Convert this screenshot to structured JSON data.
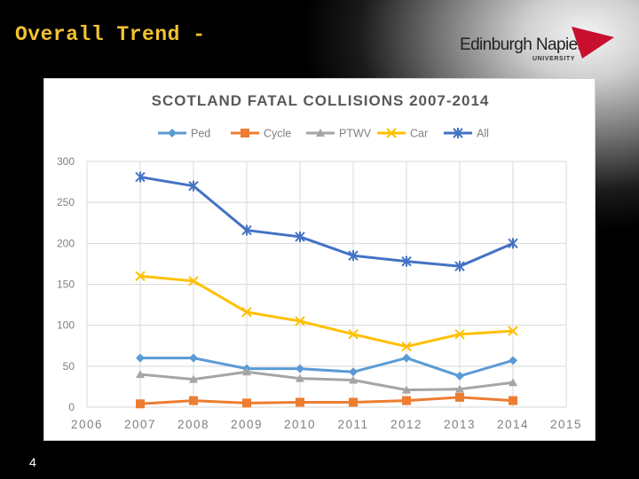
{
  "slide": {
    "title": "Overall Trend -",
    "page_number": "4"
  },
  "logo": {
    "name": "Edinburgh Napier",
    "sub": "UNIVERSITY",
    "accent_color": "#c8102e"
  },
  "chart_data": {
    "type": "line",
    "title": "SCOTLAND FATAL COLLISIONS 2007-2014",
    "xlabel": "",
    "ylabel": "",
    "x": [
      2007,
      2008,
      2009,
      2010,
      2011,
      2012,
      2013,
      2014
    ],
    "xlim": [
      2006,
      2015
    ],
    "x_ticks": [
      2006,
      2007,
      2008,
      2009,
      2010,
      2011,
      2012,
      2013,
      2014,
      2015
    ],
    "ylim": [
      0,
      300
    ],
    "y_ticks": [
      0,
      50,
      100,
      150,
      200,
      250,
      300
    ],
    "grid": true,
    "legend_position": "top",
    "series": [
      {
        "name": "Ped",
        "color": "#5b9bd5",
        "marker": "diamond",
        "values": [
          60,
          60,
          47,
          47,
          43,
          60,
          38,
          57
        ]
      },
      {
        "name": "Cycle",
        "color": "#ed7d31",
        "marker": "square",
        "values": [
          4,
          8,
          5,
          6,
          6,
          8,
          12,
          8
        ]
      },
      {
        "name": "PTWV",
        "color": "#a5a5a5",
        "marker": "triangle",
        "values": [
          40,
          34,
          43,
          35,
          33,
          21,
          22,
          30
        ]
      },
      {
        "name": "Car",
        "color": "#ffc000",
        "marker": "x",
        "values": [
          160,
          154,
          116,
          105,
          89,
          74,
          89,
          93
        ]
      },
      {
        "name": "All",
        "color": "#4472c4",
        "marker": "star",
        "values": [
          281,
          270,
          216,
          208,
          185,
          178,
          172,
          200
        ]
      }
    ]
  }
}
